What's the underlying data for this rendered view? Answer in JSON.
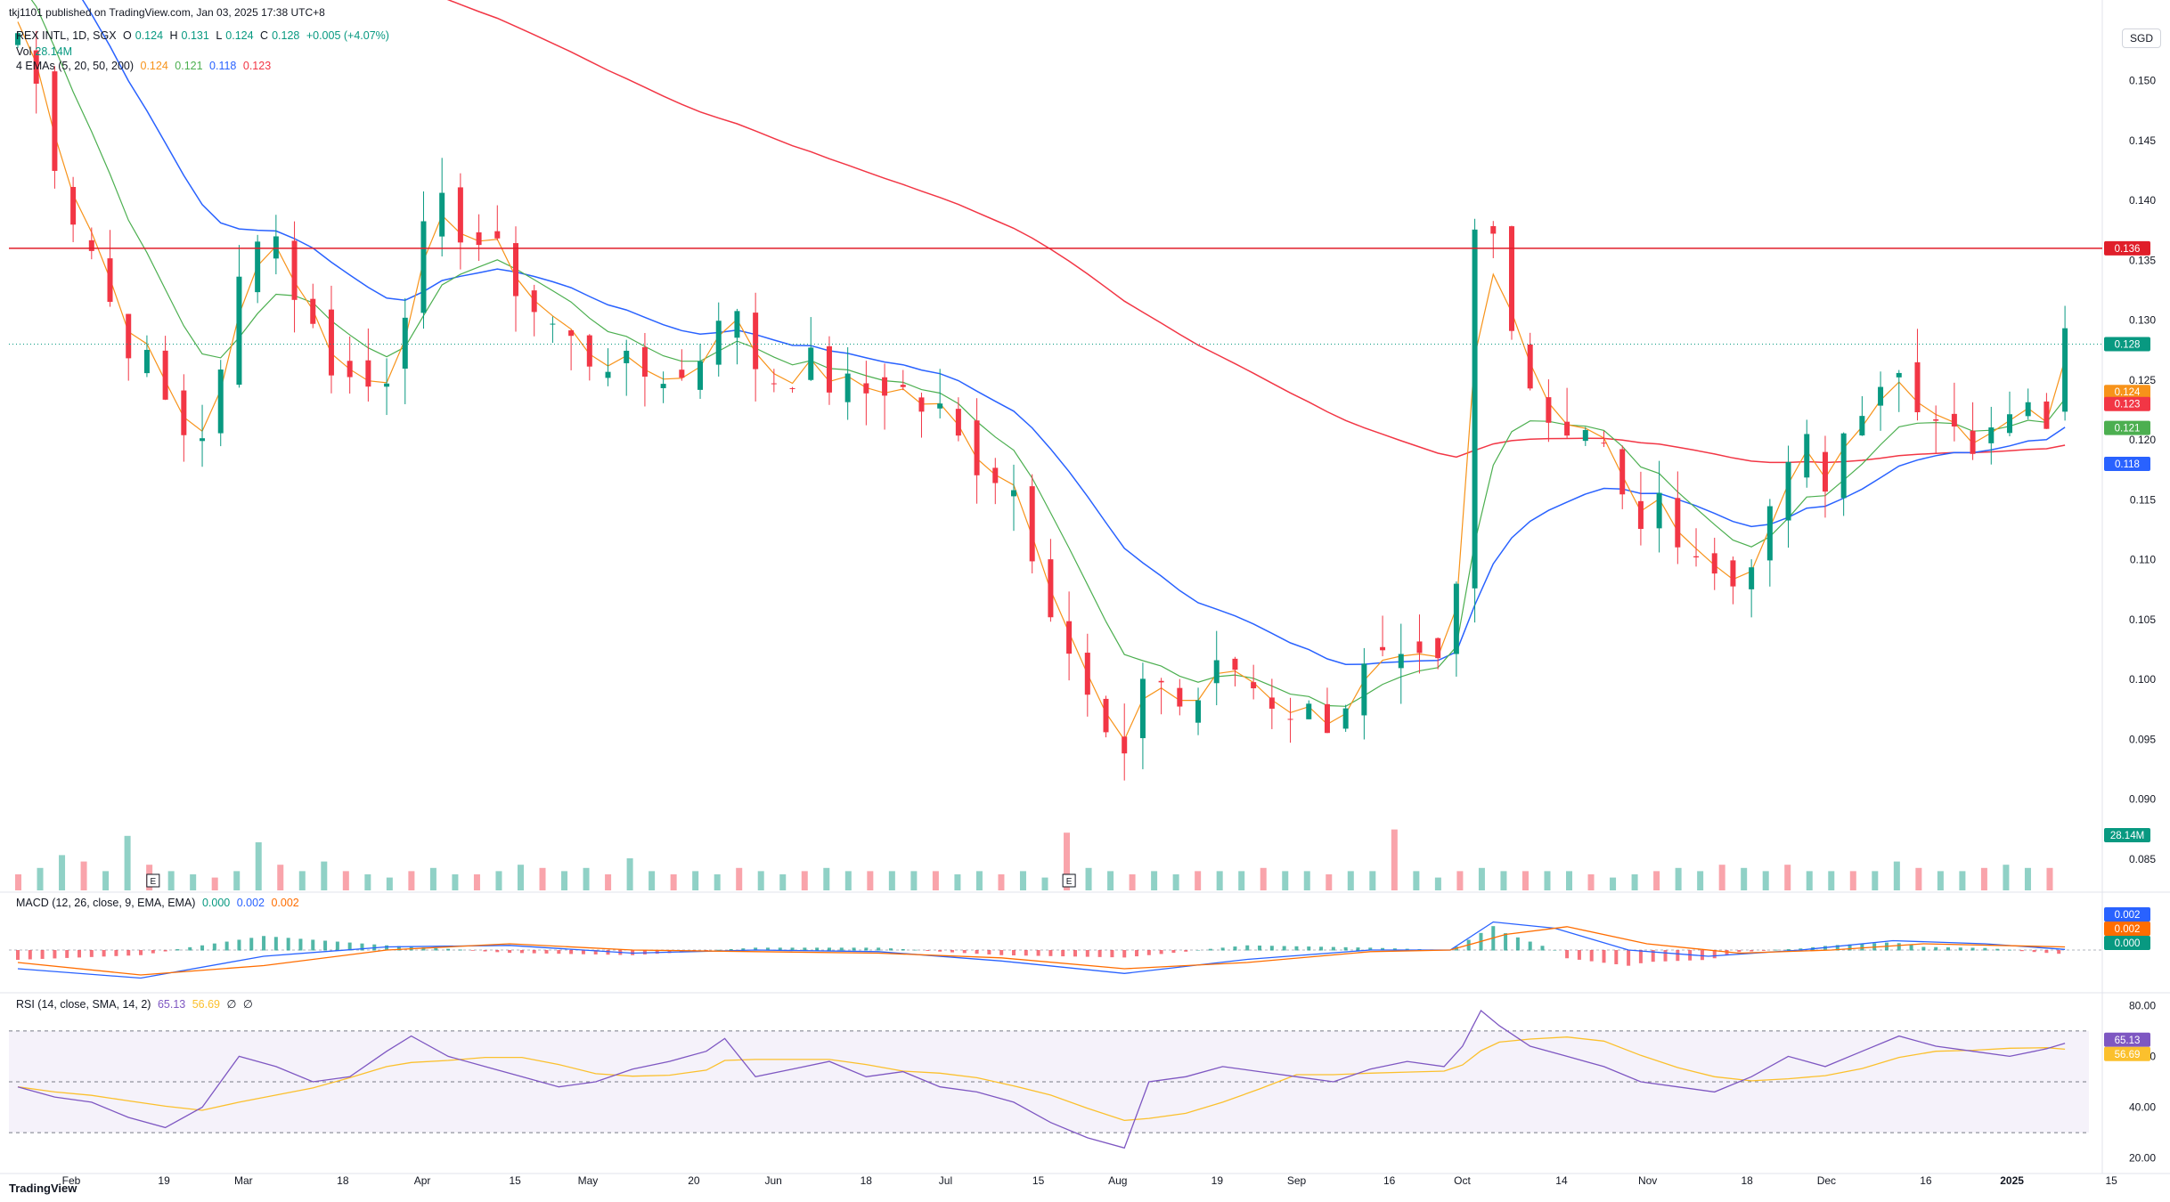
{
  "header": {
    "published": "tkj1101 published on TradingView.com, Jan 03, 2025 17:38 UTC+8",
    "symbol": "REX INTL, 1D, SGX",
    "ohlc": {
      "o_label": "O",
      "o": "0.124",
      "h_label": "H",
      "h": "0.131",
      "l_label": "L",
      "l": "0.124",
      "c_label": "C",
      "c": "0.128",
      "chg": "+0.005 (+4.07%)"
    },
    "vol_label": "Vol",
    "vol_value": "28.14M",
    "ema_label": "4 EMAs (5, 20, 50, 200)",
    "ema_values": [
      "0.124",
      "0.121",
      "0.118",
      "0.123"
    ],
    "macd_label": "MACD (12, 26, close, 9, EMA, EMA)",
    "macd_values": [
      "0.000",
      "0.002",
      "0.002"
    ],
    "rsi_label": "RSI (14, close, SMA, 14, 2)",
    "rsi_values": [
      "65.13",
      "56.69",
      "∅",
      "∅"
    ]
  },
  "currency_badge": "SGD",
  "footer_logo": "TradingView",
  "colors": {
    "up": "#089981",
    "down": "#f23645",
    "ema5": "#f7931a",
    "ema20": "#4caf50",
    "ema50": "#2962ff",
    "ema200": "#f23645",
    "macd": "#2962ff",
    "signal": "#ff6d00",
    "rsi": "#7e57c2",
    "rsi_ma": "#fbc02d",
    "hline": "#e01e2a"
  },
  "chart_data": {
    "type": "candlestick",
    "title": "REX INTL, 1D, SGX",
    "price_axis": {
      "ticks": [
        "0.150",
        "0.145",
        "0.140",
        "0.135",
        "0.130",
        "0.125",
        "0.120",
        "0.115",
        "0.110",
        "0.105",
        "0.100",
        "0.095",
        "0.090",
        "0.085"
      ],
      "range": [
        0.0835,
        0.1545
      ]
    },
    "time_axis": {
      "ticks": [
        "Feb",
        "19",
        "Mar",
        "18",
        "Apr",
        "15",
        "May",
        "20",
        "Jun",
        "18",
        "Jul",
        "15",
        "Aug",
        "19",
        "Sep",
        "16",
        "Oct",
        "14",
        "Nov",
        "18",
        "Dec",
        "16",
        "2025",
        "15"
      ]
    },
    "horizontal_line": {
      "value": 0.136,
      "label": "0.136"
    },
    "last_price": {
      "value": 0.128,
      "label": "0.128"
    },
    "ema_labels": [
      {
        "value": 0.124,
        "label": "0.124"
      },
      {
        "value": 0.123,
        "label": "0.123"
      },
      {
        "value": 0.121,
        "label": "0.121"
      },
      {
        "value": 0.118,
        "label": "0.118"
      }
    ],
    "volume_label": "28.14M",
    "earnings_markers": [
      "E",
      "E"
    ],
    "close_path": [
      [
        0,
        0.154
      ],
      [
        4,
        0.148
      ],
      [
        8,
        0.14
      ],
      [
        12,
        0.136
      ],
      [
        16,
        0.13
      ],
      [
        20,
        0.127
      ],
      [
        24,
        0.123
      ],
      [
        28,
        0.12
      ],
      [
        32,
        0.122
      ],
      [
        36,
        0.133
      ],
      [
        40,
        0.14
      ],
      [
        44,
        0.134
      ],
      [
        48,
        0.129
      ],
      [
        52,
        0.126
      ],
      [
        56,
        0.124
      ],
      [
        60,
        0.126
      ],
      [
        64,
        0.134
      ],
      [
        68,
        0.139
      ],
      [
        72,
        0.138
      ],
      [
        76,
        0.136
      ],
      [
        80,
        0.134
      ],
      [
        84,
        0.131
      ],
      [
        88,
        0.129
      ],
      [
        92,
        0.127
      ],
      [
        96,
        0.127
      ],
      [
        100,
        0.125
      ],
      [
        104,
        0.126
      ],
      [
        108,
        0.125
      ],
      [
        112,
        0.128
      ],
      [
        115,
        0.133
      ],
      [
        118,
        0.128
      ],
      [
        122,
        0.125
      ],
      [
        126,
        0.126
      ],
      [
        130,
        0.126
      ],
      [
        134,
        0.124
      ],
      [
        138,
        0.124
      ],
      [
        142,
        0.125
      ],
      [
        146,
        0.123
      ],
      [
        150,
        0.122
      ],
      [
        154,
        0.119
      ],
      [
        158,
        0.118
      ],
      [
        162,
        0.116
      ],
      [
        166,
        0.11
      ],
      [
        170,
        0.104
      ],
      [
        174,
        0.098
      ],
      [
        178,
        0.094
      ],
      [
        180,
        0.092
      ],
      [
        182,
        0.101
      ],
      [
        186,
        0.1
      ],
      [
        190,
        0.097
      ],
      [
        194,
        0.1
      ],
      [
        198,
        0.101
      ],
      [
        202,
        0.099
      ],
      [
        206,
        0.098
      ],
      [
        210,
        0.097
      ],
      [
        214,
        0.097
      ],
      [
        218,
        0.1
      ],
      [
        222,
        0.101
      ],
      [
        226,
        0.1
      ],
      [
        230,
        0.101
      ],
      [
        233,
        0.099
      ],
      [
        235,
        0.115
      ],
      [
        237,
        0.137
      ],
      [
        239,
        0.141
      ],
      [
        241,
        0.133
      ],
      [
        243,
        0.131
      ],
      [
        246,
        0.125
      ],
      [
        250,
        0.121
      ],
      [
        254,
        0.122
      ],
      [
        258,
        0.119
      ],
      [
        262,
        0.113
      ],
      [
        266,
        0.114
      ],
      [
        270,
        0.113
      ],
      [
        274,
        0.11
      ],
      [
        278,
        0.107
      ],
      [
        282,
        0.111
      ],
      [
        286,
        0.113
      ],
      [
        289,
        0.121
      ],
      [
        292,
        0.118
      ],
      [
        295,
        0.114
      ],
      [
        298,
        0.124
      ],
      [
        302,
        0.123
      ],
      [
        306,
        0.124
      ],
      [
        310,
        0.123
      ],
      [
        314,
        0.124
      ],
      [
        318,
        0.118
      ],
      [
        322,
        0.121
      ],
      [
        326,
        0.122
      ],
      [
        329,
        0.121
      ],
      [
        331,
        0.123
      ],
      [
        333,
        0.128
      ]
    ],
    "volume_heights": [
      0.25,
      0.35,
      0.55,
      0.45,
      0.3,
      0.85,
      0.4,
      0.3,
      0.25,
      0.2,
      0.3,
      0.75,
      0.4,
      0.3,
      0.45,
      0.3,
      0.25,
      0.2,
      0.3,
      0.35,
      0.25,
      0.25,
      0.3,
      0.4,
      0.35,
      0.3,
      0.35,
      0.25,
      0.5,
      0.3,
      0.25,
      0.3,
      0.25,
      0.35,
      0.3,
      0.25,
      0.3,
      0.35,
      0.3,
      0.3,
      0.3,
      0.3,
      0.3,
      0.25,
      0.3,
      0.25,
      0.3,
      0.2,
      0.9,
      0.35,
      0.3,
      0.25,
      0.3,
      0.25,
      0.3,
      0.3,
      0.3,
      0.35,
      0.3,
      0.3,
      0.25,
      0.3,
      0.3,
      0.95,
      0.3,
      0.2,
      0.3,
      0.35,
      0.3,
      0.3,
      0.3,
      0.3,
      0.25,
      0.2,
      0.25,
      0.3,
      0.35,
      0.3,
      0.4,
      0.35,
      0.3,
      0.4,
      0.3,
      0.3,
      0.3,
      0.3,
      0.45,
      0.35,
      0.3,
      0.3,
      0.35,
      0.4,
      0.35,
      0.35
    ],
    "macd_path": [
      [
        0,
        -0.6
      ],
      [
        20,
        -0.9
      ],
      [
        40,
        -0.2
      ],
      [
        60,
        0.1
      ],
      [
        80,
        0.15
      ],
      [
        100,
        -0.1
      ],
      [
        120,
        0.0
      ],
      [
        140,
        -0.05
      ],
      [
        160,
        -0.35
      ],
      [
        180,
        -0.75
      ],
      [
        200,
        -0.3
      ],
      [
        220,
        0.0
      ],
      [
        233,
        0.0
      ],
      [
        240,
        0.9
      ],
      [
        250,
        0.7
      ],
      [
        262,
        0.0
      ],
      [
        275,
        -0.2
      ],
      [
        290,
        0.0
      ],
      [
        305,
        0.3
      ],
      [
        320,
        0.2
      ],
      [
        333,
        0.02
      ]
    ],
    "signal_path": [
      [
        0,
        -0.4
      ],
      [
        20,
        -0.8
      ],
      [
        40,
        -0.5
      ],
      [
        60,
        0.0
      ],
      [
        80,
        0.2
      ],
      [
        100,
        0.0
      ],
      [
        120,
        -0.05
      ],
      [
        140,
        -0.1
      ],
      [
        160,
        -0.25
      ],
      [
        180,
        -0.6
      ],
      [
        200,
        -0.4
      ],
      [
        220,
        -0.05
      ],
      [
        233,
        0.0
      ],
      [
        242,
        0.5
      ],
      [
        252,
        0.75
      ],
      [
        265,
        0.2
      ],
      [
        280,
        -0.1
      ],
      [
        295,
        0.0
      ],
      [
        310,
        0.2
      ],
      [
        333,
        0.1
      ]
    ],
    "rsi_path": [
      [
        0,
        48
      ],
      [
        6,
        44
      ],
      [
        12,
        42
      ],
      [
        18,
        36
      ],
      [
        24,
        32
      ],
      [
        30,
        40
      ],
      [
        36,
        60
      ],
      [
        42,
        56
      ],
      [
        48,
        50
      ],
      [
        54,
        52
      ],
      [
        60,
        62
      ],
      [
        64,
        68
      ],
      [
        70,
        60
      ],
      [
        76,
        56
      ],
      [
        82,
        52
      ],
      [
        88,
        48
      ],
      [
        94,
        50
      ],
      [
        100,
        55
      ],
      [
        106,
        58
      ],
      [
        112,
        62
      ],
      [
        115,
        67
      ],
      [
        120,
        52
      ],
      [
        126,
        55
      ],
      [
        132,
        58
      ],
      [
        138,
        52
      ],
      [
        144,
        54
      ],
      [
        150,
        48
      ],
      [
        156,
        46
      ],
      [
        162,
        42
      ],
      [
        168,
        34
      ],
      [
        174,
        28
      ],
      [
        180,
        24
      ],
      [
        184,
        50
      ],
      [
        190,
        52
      ],
      [
        196,
        56
      ],
      [
        202,
        54
      ],
      [
        208,
        52
      ],
      [
        214,
        50
      ],
      [
        220,
        55
      ],
      [
        226,
        58
      ],
      [
        232,
        56
      ],
      [
        235,
        64
      ],
      [
        238,
        78
      ],
      [
        241,
        72
      ],
      [
        246,
        64
      ],
      [
        252,
        60
      ],
      [
        258,
        56
      ],
      [
        264,
        50
      ],
      [
        270,
        48
      ],
      [
        276,
        46
      ],
      [
        282,
        52
      ],
      [
        288,
        60
      ],
      [
        294,
        56
      ],
      [
        300,
        62
      ],
      [
        306,
        68
      ],
      [
        312,
        64
      ],
      [
        318,
        62
      ],
      [
        324,
        60
      ],
      [
        330,
        63
      ],
      [
        333,
        65.13
      ]
    ],
    "rsi_axis": {
      "ticks": [
        "80.00",
        "60.00",
        "40.00",
        "20.00"
      ],
      "range": [
        15,
        85
      ]
    },
    "macd_labels": [
      "0.002",
      "0.002",
      "0.000"
    ],
    "rsi_labels": [
      "65.13",
      "56.69"
    ]
  }
}
